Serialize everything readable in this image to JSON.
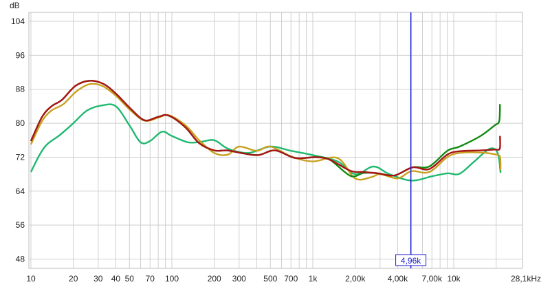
{
  "chart_data": {
    "type": "line",
    "ylabel": "dB",
    "x_unit": "kHz",
    "x_scale": "log",
    "xlim": [
      10,
      28100
    ],
    "ylim": [
      46,
      106
    ],
    "grid": true,
    "y_ticks": [
      104,
      96,
      88,
      80,
      72,
      64,
      56,
      48
    ],
    "x_ticks": [
      {
        "v": 10,
        "label": "10"
      },
      {
        "v": 20,
        "label": "20"
      },
      {
        "v": 30,
        "label": "30"
      },
      {
        "v": 40,
        "label": "40"
      },
      {
        "v": 50,
        "label": "50"
      },
      {
        "v": 70,
        "label": "70"
      },
      {
        "v": 100,
        "label": "100"
      },
      {
        "v": 200,
        "label": "200"
      },
      {
        "v": 300,
        "label": "300"
      },
      {
        "v": 500,
        "label": "500"
      },
      {
        "v": 700,
        "label": "700"
      },
      {
        "v": 1000,
        "label": "1k"
      },
      {
        "v": 2000,
        "label": "2,00k"
      },
      {
        "v": 4000,
        "label": "4,00k"
      },
      {
        "v": 7000,
        "label": "7,00k"
      },
      {
        "v": 10000,
        "label": "10k"
      },
      {
        "v": 28100,
        "label": "28,1kHz"
      }
    ],
    "cursor": {
      "x": 4960,
      "label": "4,96k",
      "color": "#1a1ad0"
    },
    "series": [
      {
        "color": "#20b870",
        "points": [
          [
            10,
            68.5
          ],
          [
            11.5,
            72.5
          ],
          [
            13,
            75
          ],
          [
            16,
            77.2
          ],
          [
            20,
            80
          ],
          [
            25,
            83
          ],
          [
            32,
            84.2
          ],
          [
            40,
            84
          ],
          [
            50,
            79.5
          ],
          [
            60,
            75.5
          ],
          [
            70,
            75.8
          ],
          [
            85,
            78
          ],
          [
            100,
            77
          ],
          [
            130,
            75.5
          ],
          [
            160,
            75.6
          ],
          [
            200,
            76
          ],
          [
            250,
            74
          ],
          [
            350,
            73
          ],
          [
            500,
            74.5
          ],
          [
            700,
            73.5
          ],
          [
            1000,
            72.5
          ],
          [
            1500,
            71
          ],
          [
            2000,
            68
          ],
          [
            2700,
            69.8
          ],
          [
            3500,
            68
          ],
          [
            5000,
            66.5
          ],
          [
            7000,
            67.5
          ],
          [
            9000,
            68.2
          ],
          [
            11000,
            68.1
          ],
          [
            14000,
            71
          ],
          [
            18000,
            74
          ],
          [
            20500,
            73
          ],
          [
            21500,
            68.3
          ]
        ]
      },
      {
        "color": "#c8a020",
        "points": [
          [
            10,
            75
          ],
          [
            12,
            80.5
          ],
          [
            14,
            83
          ],
          [
            17,
            84.5
          ],
          [
            21,
            87.5
          ],
          [
            26,
            89.2
          ],
          [
            32,
            88.8
          ],
          [
            40,
            86.5
          ],
          [
            51,
            83
          ],
          [
            64,
            80.6
          ],
          [
            80,
            81.3
          ],
          [
            95,
            81.9
          ],
          [
            125,
            79.5
          ],
          [
            156,
            76
          ],
          [
            200,
            73
          ],
          [
            250,
            72.6
          ],
          [
            300,
            74.5
          ],
          [
            400,
            73.5
          ],
          [
            500,
            74.5
          ],
          [
            700,
            72.2
          ],
          [
            1000,
            71
          ],
          [
            1500,
            71.8
          ],
          [
            2000,
            67
          ],
          [
            2600,
            67.3
          ],
          [
            3000,
            68
          ],
          [
            4000,
            67
          ],
          [
            5000,
            68.7
          ],
          [
            6700,
            68.5
          ],
          [
            9000,
            72
          ],
          [
            11000,
            73
          ],
          [
            15500,
            73.1
          ],
          [
            20000,
            72.6
          ],
          [
            21300,
            72
          ],
          [
            21500,
            69
          ]
        ]
      },
      {
        "color": "#128a12",
        "points": [
          [
            10,
            75.8
          ],
          [
            12,
            81.5
          ],
          [
            14,
            84
          ],
          [
            16.6,
            85.5
          ],
          [
            20.7,
            88.8
          ],
          [
            26,
            90
          ],
          [
            32.5,
            89.3
          ],
          [
            40,
            87
          ],
          [
            51,
            83.4
          ],
          [
            64,
            80.7
          ],
          [
            80,
            81.5
          ],
          [
            95,
            81.8
          ],
          [
            125,
            79
          ],
          [
            156,
            75.3
          ],
          [
            200,
            73.6
          ],
          [
            245,
            73.6
          ],
          [
            310,
            73
          ],
          [
            410,
            72.5
          ],
          [
            540,
            73.6
          ],
          [
            750,
            71.8
          ],
          [
            1050,
            72
          ],
          [
            1320,
            71.4
          ],
          [
            1850,
            67.6
          ],
          [
            2300,
            68.3
          ],
          [
            2900,
            68.2
          ],
          [
            3800,
            67.7
          ],
          [
            5100,
            69.6
          ],
          [
            6700,
            69.8
          ],
          [
            9000,
            73.5
          ],
          [
            11000,
            74.5
          ],
          [
            15500,
            77
          ],
          [
            19500,
            79.5
          ],
          [
            21000,
            80.5
          ],
          [
            21300,
            84.5
          ]
        ]
      },
      {
        "color": "#a81414",
        "points": [
          [
            10,
            75.8
          ],
          [
            12,
            81.5
          ],
          [
            14,
            84
          ],
          [
            16.6,
            85.5
          ],
          [
            20.7,
            88.8
          ],
          [
            26,
            90
          ],
          [
            32.5,
            89.3
          ],
          [
            40,
            87
          ],
          [
            51,
            83.4
          ],
          [
            64,
            80.7
          ],
          [
            80,
            81.5
          ],
          [
            95,
            81.8
          ],
          [
            125,
            79
          ],
          [
            156,
            75.3
          ],
          [
            200,
            73.6
          ],
          [
            245,
            73.6
          ],
          [
            310,
            73
          ],
          [
            410,
            72.5
          ],
          [
            540,
            73.6
          ],
          [
            750,
            71.8
          ],
          [
            1050,
            72
          ],
          [
            1320,
            71.4
          ],
          [
            1850,
            68.8
          ],
          [
            2300,
            68.5
          ],
          [
            2900,
            68.2
          ],
          [
            3800,
            67.7
          ],
          [
            5100,
            69.6
          ],
          [
            6700,
            69.2
          ],
          [
            9000,
            72.6
          ],
          [
            11000,
            73.4
          ],
          [
            15500,
            73.6
          ],
          [
            19500,
            73.8
          ],
          [
            21200,
            74
          ],
          [
            21300,
            77
          ]
        ]
      }
    ]
  }
}
